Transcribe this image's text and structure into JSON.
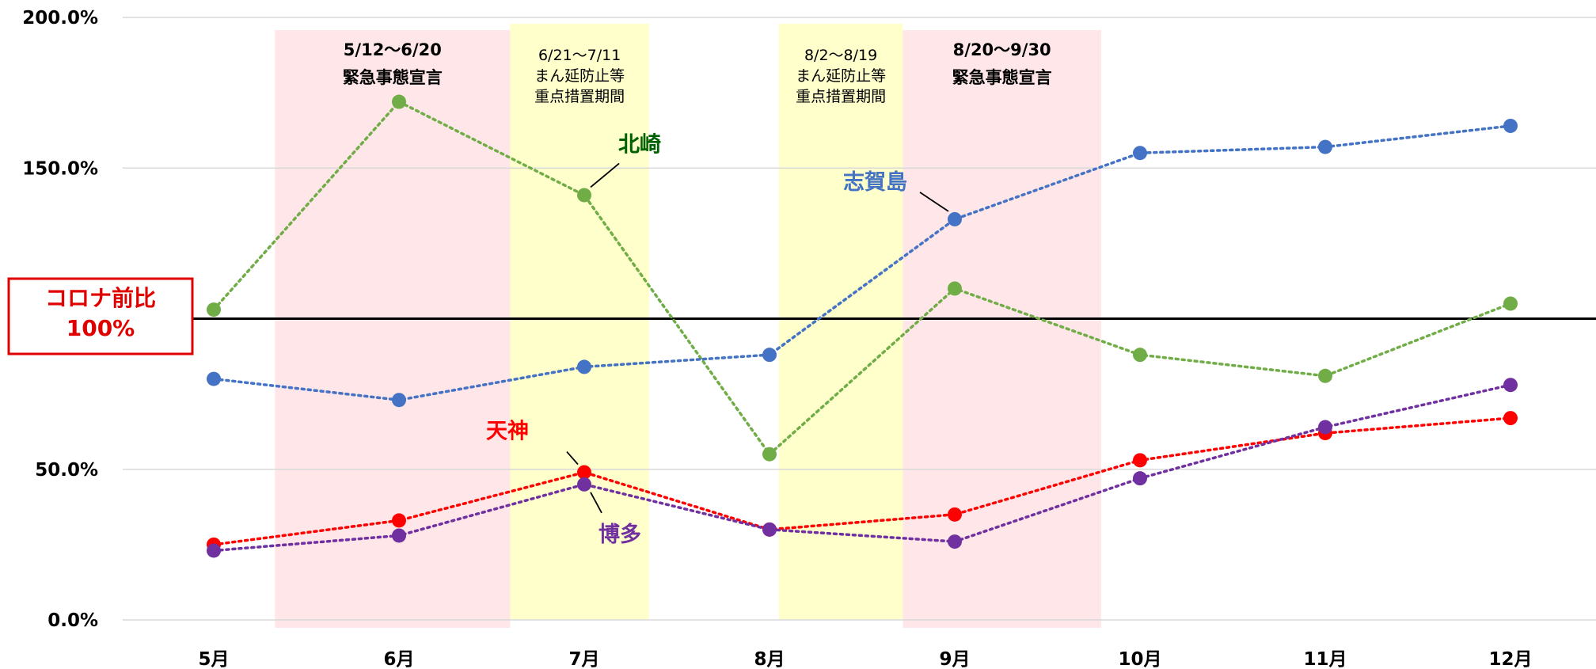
{
  "chart_data": {
    "type": "line",
    "categories": [
      "5月",
      "6月",
      "7月",
      "8月",
      "9月",
      "10月",
      "11月",
      "12月"
    ],
    "ylim": [
      0,
      200
    ],
    "yticks": [
      "0.0%",
      "50.0%",
      "150.0%",
      "200.0%"
    ],
    "ytick_values": [
      0,
      50,
      150,
      200
    ],
    "grid": true,
    "reference_line": {
      "value": 100,
      "label_lines": [
        "コロナ前比",
        "100%"
      ],
      "color": "#e00000"
    },
    "bands": [
      {
        "x_start": 0.33,
        "x_end": 1.6,
        "color": "#ffe6e8",
        "bold": true,
        "label_lines": [
          "5/12〜6/20",
          "緊急事態宣言"
        ]
      },
      {
        "x_start": 1.6,
        "x_end": 2.35,
        "color": "#ffffcc",
        "bold": false,
        "label_lines": [
          "6/21〜7/11",
          "まん延防止等",
          "重点措置期間"
        ]
      },
      {
        "x_start": 3.05,
        "x_end": 3.72,
        "color": "#ffffcc",
        "bold": false,
        "label_lines": [
          "8/2〜8/19",
          "まん延防止等",
          "重点措置期間"
        ]
      },
      {
        "x_start": 3.72,
        "x_end": 4.79,
        "color": "#ffe6e8",
        "bold": true,
        "label_lines": [
          "8/20〜9/30",
          "緊急事態宣言"
        ]
      }
    ],
    "series": [
      {
        "name": "北崎",
        "color": "#70ad47",
        "label_color": "#006100",
        "values": [
          103,
          172,
          141,
          55,
          110,
          88,
          81,
          105
        ],
        "label_index": 2
      },
      {
        "name": "志賀島",
        "color": "#4472c4",
        "label_color": "#4472c4",
        "values": [
          80,
          73,
          84,
          88,
          133,
          155,
          157,
          164
        ],
        "label_index": 4
      },
      {
        "name": "天神",
        "color": "#ff0000",
        "label_color": "#ff0000",
        "values": [
          25,
          33,
          49,
          30,
          35,
          53,
          62,
          67
        ],
        "label_index": 2
      },
      {
        "name": "博多",
        "color": "#7030a0",
        "label_color": "#7030a0",
        "values": [
          23,
          28,
          45,
          30,
          26,
          47,
          64,
          78
        ],
        "label_index": 2
      }
    ]
  }
}
